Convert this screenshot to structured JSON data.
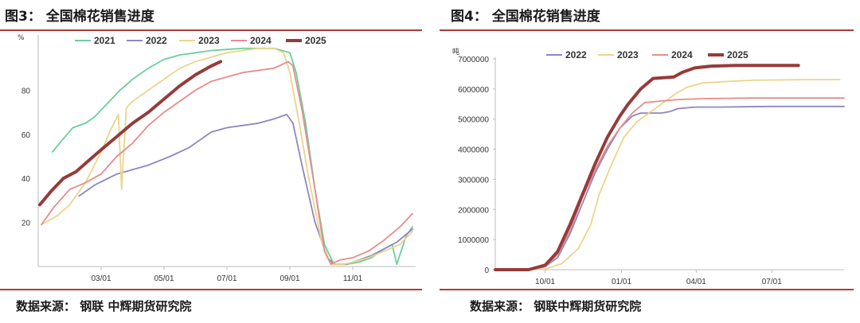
{
  "left": {
    "title": "图3： 全国棉花销售进度",
    "source": "数据来源： 钢联  中辉期货研究院"
  },
  "right": {
    "title": "图4： 全国棉花销售进度",
    "source": "数据来源： 钢联中辉期货研究院"
  },
  "colors": {
    "2021": "#6ccf9a",
    "2022": "#8c88c0",
    "2023": "#ecd48c",
    "2024": "#e78b8b",
    "2025": "#973a3a",
    "rule": "#b33a3a"
  },
  "chart_data": [
    {
      "type": "line",
      "title": "",
      "ylabel": "%",
      "xlabel": "",
      "x_ticks": [
        "03/01",
        "05/01",
        "07/01",
        "09/01",
        "11/01"
      ],
      "y_ticks": [
        "20",
        "40",
        "60",
        "80"
      ],
      "ylim": [
        0,
        100
      ],
      "xlim_months": [
        1,
        13
      ],
      "grid": false,
      "legend_position": "top",
      "series": [
        {
          "name": "2021",
          "x": [
            1.45,
            1.8,
            2.1,
            2.5,
            2.8,
            3.2,
            3.6,
            4.0,
            4.5,
            5.0,
            5.5,
            6.0,
            6.5,
            7.0,
            7.5,
            8.0,
            8.5,
            9.0,
            9.2,
            9.5,
            9.8,
            10.1,
            10.4,
            10.8,
            11.2,
            11.6,
            12.0,
            12.25,
            12.4,
            12.7,
            12.9
          ],
          "y": [
            52,
            58,
            63,
            65,
            68,
            74,
            80,
            85,
            90,
            94,
            96,
            97,
            98,
            98.5,
            99,
            99,
            99,
            97,
            88,
            65,
            35,
            10,
            1,
            1,
            2,
            4,
            8,
            10,
            1,
            14,
            18
          ]
        },
        {
          "name": "2022",
          "x": [
            2.3,
            2.8,
            3.5,
            4.5,
            5.2,
            5.8,
            6.2,
            6.5,
            7.0,
            7.5,
            8.0,
            8.5,
            8.9,
            9.1,
            9.4,
            9.8,
            10.2,
            10.4,
            10.8,
            11.2,
            11.6,
            12.0,
            12.4,
            12.9
          ],
          "y": [
            32,
            37,
            42,
            46,
            50,
            54,
            58,
            61,
            63,
            64,
            65,
            67,
            69,
            65,
            45,
            20,
            4,
            1,
            1,
            3,
            5,
            8,
            11,
            17
          ]
        },
        {
          "name": "2023",
          "x": [
            1.1,
            1.6,
            2.0,
            2.5,
            3.0,
            3.3,
            3.55,
            3.65,
            3.8,
            4.0,
            4.5,
            5.0,
            5.5,
            6.0,
            6.5,
            7.0,
            7.5,
            8.0,
            8.5,
            8.8,
            9.0,
            9.3,
            9.6,
            10.0,
            10.3,
            10.7,
            11.0,
            11.5,
            12.0,
            12.5,
            12.9
          ],
          "y": [
            19,
            23,
            28,
            38,
            52,
            62,
            69,
            35,
            72,
            75,
            80,
            85,
            90,
            93,
            95,
            97,
            98,
            99,
            99,
            97,
            88,
            65,
            40,
            12,
            1,
            1,
            2,
            4,
            7,
            10,
            16
          ]
        },
        {
          "name": "2024",
          "x": [
            1.1,
            1.5,
            2.0,
            2.5,
            3.0,
            3.5,
            4.0,
            4.5,
            5.0,
            5.5,
            6.0,
            6.5,
            7.0,
            7.5,
            8.0,
            8.5,
            8.8,
            8.95,
            9.1,
            9.4,
            9.8,
            10.1,
            10.3,
            10.6,
            11.0,
            11.5,
            12.0,
            12.5,
            12.9
          ],
          "y": [
            19,
            27,
            35,
            38,
            42,
            50,
            56,
            64,
            70,
            75,
            80,
            84,
            86,
            88,
            89,
            90,
            92,
            93,
            91,
            70,
            35,
            7,
            1,
            3,
            4,
            7,
            12,
            18,
            24
          ]
        },
        {
          "name": "2025",
          "x": [
            1.05,
            1.4,
            1.8,
            2.2,
            2.6,
            3.0,
            3.5,
            4.0,
            4.5,
            5.0,
            5.5,
            6.0,
            6.5,
            6.8
          ],
          "y": [
            28,
            34,
            40,
            43,
            48,
            53,
            59,
            65,
            70,
            76,
            82,
            87,
            91,
            93
          ]
        }
      ]
    },
    {
      "type": "line",
      "title": "",
      "ylabel": "吨",
      "xlabel": "",
      "x_ticks": [
        "10/01",
        "01/01",
        "04/01",
        "07/01"
      ],
      "y_ticks": [
        "0",
        "1000000",
        "2000000",
        "3000000",
        "4000000",
        "5000000",
        "6000000",
        "7000000"
      ],
      "ylim": [
        0,
        7000000
      ],
      "grid": false,
      "legend_position": "top",
      "series": [
        {
          "name": "2022",
          "x": [
            0,
            40,
            60,
            75,
            90,
            105,
            120,
            135,
            150,
            165,
            175,
            200,
            210,
            220,
            240,
            270,
            300,
            330,
            360,
            390,
            420
          ],
          "y": [
            0,
            0,
            100000,
            400000,
            1200000,
            2200000,
            3200000,
            4000000,
            4700000,
            5100000,
            5200000,
            5200000,
            5250000,
            5350000,
            5400000,
            5400000,
            5410000,
            5420000,
            5420000,
            5420000,
            5420000
          ]
        },
        {
          "name": "2023",
          "x": [
            0,
            40,
            60,
            80,
            100,
            115,
            125,
            140,
            155,
            170,
            185,
            200,
            215,
            230,
            250,
            280,
            310,
            340,
            370,
            400,
            415
          ],
          "y": [
            0,
            0,
            20000,
            200000,
            700000,
            1500000,
            2500000,
            3500000,
            4400000,
            4900000,
            5200000,
            5500000,
            5800000,
            6050000,
            6200000,
            6250000,
            6290000,
            6300000,
            6310000,
            6310000,
            6310000
          ]
        },
        {
          "name": "2024",
          "x": [
            0,
            40,
            60,
            75,
            90,
            105,
            120,
            135,
            150,
            165,
            180,
            200,
            220,
            250,
            280,
            310,
            340,
            380,
            420
          ],
          "y": [
            0,
            0,
            100000,
            500000,
            1300000,
            2400000,
            3300000,
            4100000,
            4700000,
            5200000,
            5550000,
            5600000,
            5650000,
            5680000,
            5690000,
            5700000,
            5700000,
            5700000,
            5700000
          ]
        },
        {
          "name": "2025",
          "x": [
            0,
            40,
            60,
            75,
            90,
            105,
            120,
            135,
            150,
            160,
            175,
            190,
            205,
            215,
            225,
            240,
            260,
            290,
            320,
            345,
            365
          ],
          "y": [
            0,
            0,
            150000,
            600000,
            1500000,
            2500000,
            3500000,
            4400000,
            5100000,
            5500000,
            6000000,
            6350000,
            6380000,
            6400000,
            6550000,
            6700000,
            6760000,
            6780000,
            6780000,
            6780000,
            6780000
          ]
        }
      ],
      "x_tick_positions_days": [
        60,
        152,
        242,
        333
      ]
    }
  ]
}
